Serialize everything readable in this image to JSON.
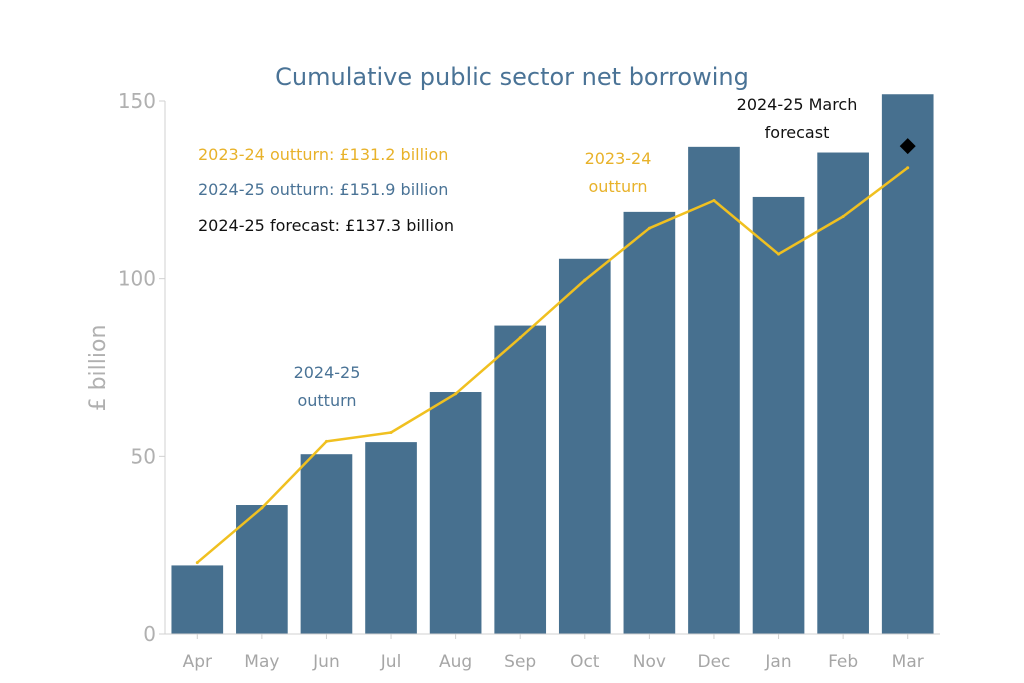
{
  "chart_data": {
    "type": "bar",
    "title": "Cumulative public sector net borrowing",
    "xlabel": "",
    "ylabel": "£ billion",
    "ylim": [
      0,
      150
    ],
    "yticks": [
      "0",
      "50",
      "100",
      "150"
    ],
    "categories": [
      "Apr",
      "May",
      "Jun",
      "Jul",
      "Aug",
      "Sep",
      "Oct",
      "Nov",
      "Dec",
      "Jan",
      "Feb",
      "Mar"
    ],
    "series": [
      {
        "name": "2024-25 outturn",
        "type": "bar",
        "color": "#47708f",
        "values": [
          19.3,
          36.3,
          50.6,
          54.0,
          68.1,
          86.8,
          105.6,
          118.8,
          137.1,
          123.0,
          135.5,
          151.9
        ]
      },
      {
        "name": "2023-24 outturn",
        "type": "line",
        "color": "#f0c020",
        "values": [
          20.1,
          35.5,
          54.2,
          56.7,
          67.6,
          83.4,
          99.6,
          114.2,
          122.0,
          106.9,
          117.5,
          131.2
        ]
      },
      {
        "name": "2024-25 forecast",
        "type": "marker",
        "color": "#000000",
        "category": "Mar",
        "value": 137.3
      }
    ],
    "legend": [
      {
        "label": "2023-24 outturn: £131.2 billion",
        "color": "#e8b22a"
      },
      {
        "label": "2024-25 outturn: £151.9 billion",
        "color": "#4a7396"
      },
      {
        "label": "2024-25 forecast: £137.3 billion",
        "color": "#111111"
      }
    ],
    "annotations": [
      {
        "lines": [
          "2024-25",
          "outturn"
        ],
        "color": "#4a7396"
      },
      {
        "lines": [
          "2023-24",
          "outturn"
        ],
        "color": "#e8b22a"
      },
      {
        "lines": [
          "2024-25 March",
          "forecast"
        ],
        "color": "#111111"
      }
    ]
  }
}
